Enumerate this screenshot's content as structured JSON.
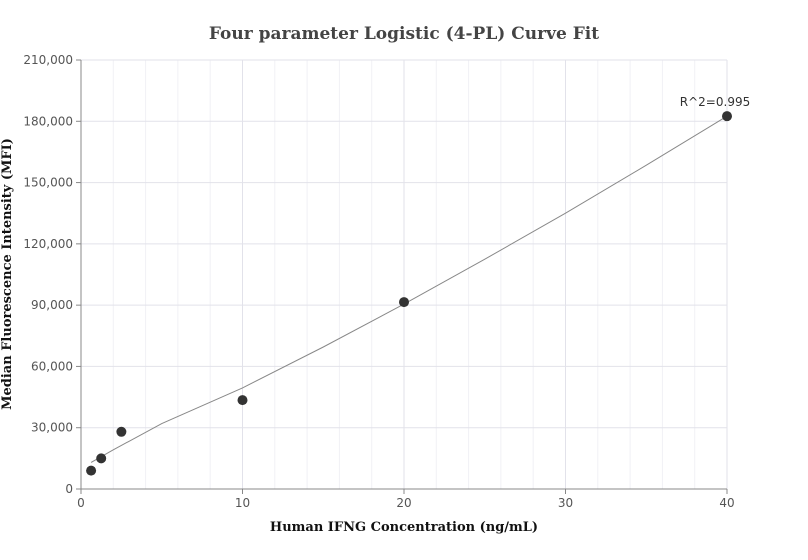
{
  "chart_data": {
    "type": "scatter",
    "title": "Four parameter Logistic (4-PL) Curve Fit",
    "xlabel": "Human IFNG Concentration (ng/mL)",
    "ylabel": "Median Fluorescence Intensity (MFI)",
    "xlim": [
      0,
      40
    ],
    "ylim": [
      0,
      210000
    ],
    "x_ticks": [
      0,
      10,
      20,
      30,
      40
    ],
    "y_ticks": [
      0,
      30000,
      60000,
      90000,
      120000,
      150000,
      180000,
      210000
    ],
    "x_tick_labels": [
      "0",
      "10",
      "20",
      "30",
      "40"
    ],
    "y_tick_labels": [
      "0",
      "30,000",
      "60,000",
      "90,000",
      "120,000",
      "150,000",
      "180,000",
      "210,000"
    ],
    "grid": true,
    "series": [
      {
        "points": [
          {
            "x": 0.625,
            "y": 9000
          },
          {
            "x": 1.25,
            "y": 15000
          },
          {
            "x": 2.5,
            "y": 28000
          },
          {
            "x": 10,
            "y": 43500
          },
          {
            "x": 20,
            "y": 91500
          },
          {
            "x": 40,
            "y": 182500
          }
        ],
        "color": "#333333"
      }
    ],
    "fit_curve": {
      "x": [
        0.625,
        2,
        5,
        10,
        15,
        20,
        25,
        30,
        35,
        40
      ],
      "y": [
        13000,
        19200,
        32000,
        49500,
        69500,
        90500,
        112500,
        135000,
        158500,
        182500
      ],
      "color": "#888888"
    },
    "annotation": {
      "text": "R^2=0.995",
      "x": 40,
      "y": 182500
    }
  }
}
